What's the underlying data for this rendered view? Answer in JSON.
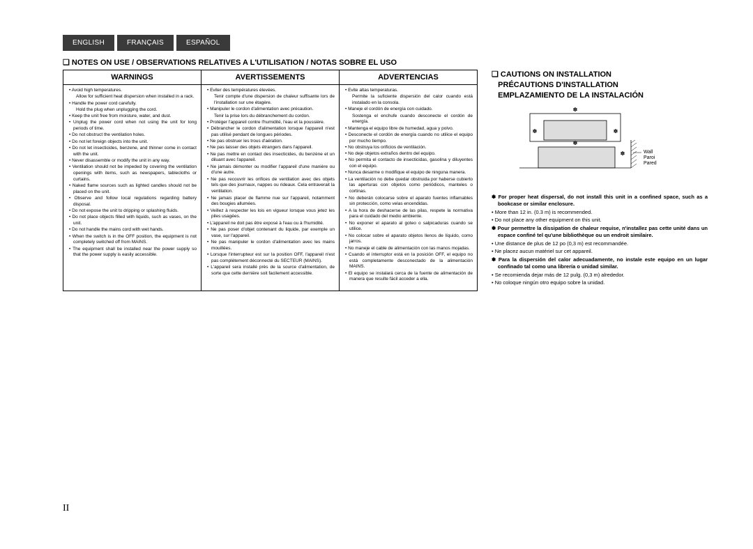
{
  "tabs": {
    "en": "ENGLISH",
    "fr": "FRANÇAIS",
    "es": "ESPAÑOL"
  },
  "sectionTitle": "NOTES ON USE / OBSERVATIONS RELATIVES A L'UTILISATION / NOTAS SOBRE EL USO",
  "columns": {
    "warnings": {
      "head": "WARNINGS",
      "items": [
        "Avoid high temperatures.",
        "Allow for sufficient heat dispersion when installed in a rack.",
        "Handle the power cord carefully.",
        "Hold the plug when unplugging the cord.",
        "Keep the unit free from moisture, water, and dust.",
        "Unplug the power cord when not using the unit for long periods of time.",
        "Do not obstruct the ventilation holes.",
        "Do not let foreign objects into the unit.",
        "Do not let insecticides, benzene, and thinner come in contact with the unit.",
        "Never disassemble or modify the unit in any way.",
        "Ventilation should not be impeded by covering the ventilation openings with items, such as newspapers, tablecloths or curtains.",
        "Naked flame sources such as lighted candles should not be placed on the unit.",
        "Observe and follow local regulations regarding battery disposal.",
        "Do not expose the unit to dripping or splashing fluids.",
        "Do not place objects filled with liquids, such as vases, on the unit.",
        "Do not handle the mains cord with wet hands.",
        "When the switch is in the OFF position, the equipment is not completely switched off from MAINS.",
        "The equipment shall be installed near the power supply so that the power supply is easily accessible."
      ],
      "subs": {
        "0": 1,
        "2": 3
      }
    },
    "avert": {
      "head": "AVERTISSEMENTS",
      "items": [
        "Eviter des températures élevées.",
        "Tenir compte d'une dispersion de chaleur suffisante lors de l'installation sur une étagère.",
        "Manipuler le cordon d'alimentation avec précaution.",
        "Tenir la prise lors du débranchement du cordon.",
        "Protéger l'appareil contre l'humidité, l'eau et la poussière.",
        "Débrancher le cordon d'alimentation lorsque l'appareil n'est pas utilisé pendant de longues périodes.",
        "Ne pas obstruer les trous d'aération.",
        "Ne pas laisser des objets étrangers dans l'appareil.",
        "Ne pas mettre en contact des insecticides, du benzène et un diluant avec l'appareil.",
        "Ne jamais démonter ou modifier l'appareil d'une manière ou d'une autre.",
        "Ne pas recouvrir les orifices de ventilation avec des objets tels que des journaux, nappes ou rideaux. Cela entraverait la ventilation.",
        "Ne jamais placer de flamme nue sur l'appareil, notamment des bougies allumées.",
        "Veillez à respecter les lois en vigueur lorsque vous jetez les piles usagées.",
        "L'appareil ne doit pas être exposé à l'eau ou à l'humidité.",
        "Ne pas poser d'objet contenant du liquide, par exemple un vase, sur l'appareil.",
        "Ne pas manipuler le cordon d'alimentation avec les mains mouillées.",
        "Lorsque l'interrupteur est sur la position OFF, l'appareil n'est pas complètement déconnecté du SECTEUR (MAINS).",
        "L'appareil sera installé près de la source d'alimentation, de sorte que cette dernière soit facilement accessible."
      ],
      "subs": {
        "0": 1,
        "2": 3
      }
    },
    "advert": {
      "head": "ADVERTENCIAS",
      "items": [
        "Evite altas temperaturas.",
        "Permite la suficiente dispersión del calor cuando está instalado en la consola.",
        "Maneje el cordón de energía con cuidado.",
        "Sostenga el enchufe cuando desconecte el cordón de energía.",
        "Mantenga el equipo libre de humedad, agua y polvo.",
        "Desconecte el cordón de energía cuando no utilice el equipo por mucho tiempo.",
        "No obstruya los orificios de ventilación.",
        "No deje objetos extraños dentro del equipo.",
        "No permita el contacto de insecticidas, gasolina y diluyentes con el equipo.",
        "Nunca desarme o modifique el equipo de ninguna manera.",
        "La ventilación no debe quedar obstruida por haberse cubierto las aperturas con objetos como periódicos, manteles o cortinas.",
        "No deberán colocarse sobre el aparato fuentes inflamables sin protección, como velas encendidas.",
        "A la hora de deshacerse de las pilas, respete la normativa para el cuidado del medio ambiente.",
        "No exponer el aparato al goteo o salpicaduras cuando se utilice.",
        "No colocar sobre el aparato objetos llenos de líquido, como jarros.",
        "No maneje el cable de alimentación con las manos mojadas.",
        "Cuando el interruptor está en la posición OFF, el equipo no está completamente desconectado de la alimentación MAINS.",
        "El equipo se instalará cerca de la fuente de alimentación de manera que resulte fácil acceder a ella."
      ],
      "subs": {
        "0": 1,
        "2": 3
      }
    }
  },
  "cautions": {
    "title1": "CAUTIONS ON INSTALLATION",
    "title2": "PRÉCAUTIONS D'INSTALLATION",
    "title3": "EMPLAZAMIENTO DE LA INSTALACIÓN",
    "diagram": {
      "wall": "Wall",
      "paroi": "Paroi",
      "pared": "Pared",
      "star": "✽"
    },
    "items": [
      {
        "t": "star",
        "b": true,
        "text": "For proper heat dispersal, do not install this unit in a confined space, such as a bookcase or similar enclosure."
      },
      {
        "t": "bullet",
        "b": false,
        "text": "More than 12 in. (0.3 m) is recommended."
      },
      {
        "t": "bullet",
        "b": false,
        "text": "Do not place any other equipment on this unit."
      },
      {
        "t": "star",
        "b": true,
        "text": "Pour permettre la dissipation de chaleur requise, n'installez pas cette unité dans un espace confiné tel qu'une bibliothèque ou un endroit similaire."
      },
      {
        "t": "bullet",
        "b": false,
        "text": "Une distance de plus de 12 po (0,3 m) est recommandée."
      },
      {
        "t": "bullet",
        "b": false,
        "text": "Ne placez aucun matériel sur cet appareil."
      },
      {
        "t": "star",
        "b": true,
        "text": "Para la dispersión del calor adecuadamente, no instale este equipo en un lugar confinado tal como una librería o unidad similar."
      },
      {
        "t": "bullet",
        "b": false,
        "text": "Se recomienda dejar más de 12 pulg. (0,3 m) alrededor."
      },
      {
        "t": "bullet",
        "b": false,
        "text": "No coloque ningún otro equipo sobre la unidad."
      }
    ]
  },
  "pageNum": "II"
}
